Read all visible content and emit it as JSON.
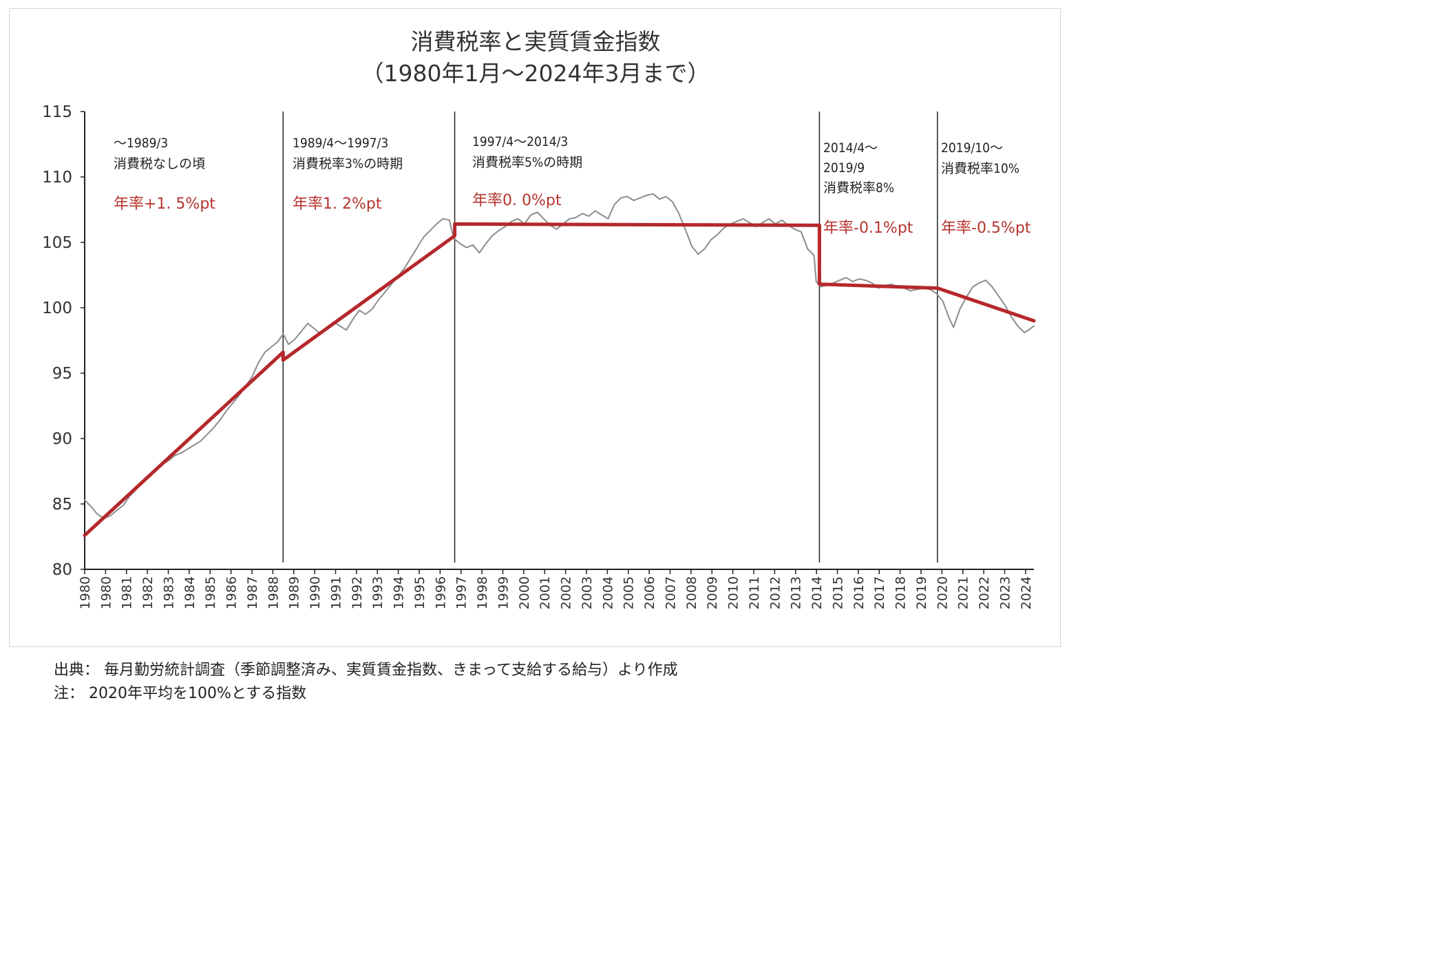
{
  "chart_data": {
    "type": "line",
    "title": "消費税率と実質賃金指数",
    "subtitle": "（1980年1月～2024年3月まで）",
    "xlabel": "",
    "ylabel": "",
    "ylim": [
      80,
      115
    ],
    "yticks": [
      "80",
      "85",
      "90",
      "95",
      "100",
      "105",
      "110",
      "115"
    ],
    "xlim": [
      1980.0,
      2024.25
    ],
    "xticks": [
      "1980",
      "1980",
      "1981",
      "1982",
      "1983",
      "1984",
      "1985",
      "1986",
      "1987",
      "1988",
      "1989",
      "1990",
      "1991",
      "1992",
      "1993",
      "1994",
      "1995",
      "1996",
      "1997",
      "1998",
      "1999",
      "2000",
      "2001",
      "2002",
      "2003",
      "2004",
      "2005",
      "2006",
      "2007",
      "2008",
      "2009",
      "2010",
      "2011",
      "2012",
      "2013",
      "2014",
      "2015",
      "2016",
      "2017",
      "2018",
      "2019",
      "2020",
      "2021",
      "2022",
      "2023",
      "2024"
    ],
    "grid": false,
    "series": [
      {
        "color": "#8c8c8c",
        "x": [
          1980.0,
          1980.3,
          1980.6,
          1980.9,
          1981.2,
          1981.5,
          1981.8,
          1982.1,
          1982.4,
          1982.7,
          1983.0,
          1983.3,
          1983.6,
          1983.9,
          1984.2,
          1984.5,
          1984.8,
          1985.1,
          1985.4,
          1985.7,
          1986.0,
          1986.3,
          1986.6,
          1986.9,
          1987.2,
          1987.5,
          1987.8,
          1988.1,
          1988.4,
          1988.7,
          1989.0,
          1989.25,
          1989.5,
          1989.8,
          1990.1,
          1990.4,
          1990.7,
          1991.0,
          1991.3,
          1991.6,
          1991.9,
          1992.2,
          1992.5,
          1992.8,
          1993.1,
          1993.4,
          1993.7,
          1994.0,
          1994.3,
          1994.6,
          1994.9,
          1995.2,
          1995.5,
          1995.8,
          1996.1,
          1996.4,
          1996.7,
          1997.0,
          1997.2,
          1997.5,
          1997.8,
          1998.1,
          1998.4,
          1998.7,
          1999.0,
          1999.3,
          1999.6,
          1999.9,
          2000.2,
          2000.5,
          2000.8,
          2001.1,
          2001.4,
          2001.7,
          2002.0,
          2002.3,
          2002.6,
          2002.9,
          2003.2,
          2003.5,
          2003.8,
          2004.1,
          2004.4,
          2004.7,
          2005.0,
          2005.3,
          2005.6,
          2005.9,
          2006.2,
          2006.5,
          2006.8,
          2007.1,
          2007.4,
          2007.7,
          2008.0,
          2008.3,
          2008.6,
          2008.9,
          2009.2,
          2009.5,
          2009.8,
          2010.1,
          2010.4,
          2010.7,
          2011.0,
          2011.3,
          2011.6,
          2011.9,
          2012.2,
          2012.5,
          2012.8,
          2013.1,
          2013.4,
          2013.7,
          2014.0,
          2014.1,
          2014.3,
          2014.6,
          2014.9,
          2015.2,
          2015.5,
          2015.8,
          2016.1,
          2016.4,
          2016.7,
          2017.0,
          2017.3,
          2017.6,
          2017.9,
          2018.2,
          2018.5,
          2018.8,
          2019.1,
          2019.4,
          2019.7,
          2020.0,
          2020.3,
          2020.5,
          2020.8,
          2021.1,
          2021.4,
          2021.7,
          2022.0,
          2022.3,
          2022.6,
          2022.9,
          2023.2,
          2023.5,
          2023.8,
          2024.0,
          2024.25
        ],
        "values": [
          85.3,
          84.8,
          84.2,
          83.9,
          84.1,
          84.5,
          84.9,
          85.6,
          86.1,
          86.6,
          87.2,
          87.6,
          88.0,
          88.3,
          88.7,
          88.9,
          89.2,
          89.5,
          89.8,
          90.3,
          90.8,
          91.4,
          92.1,
          92.7,
          93.3,
          94.0,
          94.7,
          95.8,
          96.6,
          97.0,
          97.4,
          98.0,
          97.2,
          97.6,
          98.2,
          98.8,
          98.4,
          98.0,
          98.5,
          98.9,
          98.6,
          98.3,
          99.1,
          99.8,
          99.5,
          99.9,
          100.6,
          101.2,
          101.8,
          102.4,
          103.0,
          103.8,
          104.6,
          105.4,
          105.9,
          106.4,
          106.8,
          106.7,
          105.3,
          104.9,
          104.6,
          104.8,
          104.2,
          104.9,
          105.5,
          105.9,
          106.2,
          106.6,
          106.8,
          106.4,
          107.1,
          107.3,
          106.8,
          106.3,
          106.0,
          106.4,
          106.8,
          106.9,
          107.2,
          107.0,
          107.4,
          107.1,
          106.8,
          107.9,
          108.4,
          108.5,
          108.2,
          108.4,
          108.6,
          108.7,
          108.3,
          108.5,
          108.1,
          107.2,
          106.0,
          104.7,
          104.1,
          104.5,
          105.2,
          105.6,
          106.1,
          106.4,
          106.6,
          106.8,
          106.5,
          106.2,
          106.5,
          106.8,
          106.4,
          106.7,
          106.3,
          106.0,
          105.8,
          104.5,
          104.0,
          102.0,
          101.6,
          101.7,
          101.9,
          102.1,
          102.3,
          102.0,
          102.2,
          102.1,
          101.9,
          101.5,
          101.7,
          101.8,
          101.6,
          101.5,
          101.3,
          101.4,
          101.5,
          101.4,
          101.1,
          100.5,
          99.2,
          98.5,
          99.9,
          100.8,
          101.6,
          101.9,
          102.1,
          101.6,
          100.9,
          100.2,
          99.3,
          98.6,
          98.1,
          98.3,
          98.6
        ]
      },
      {
        "color": "#b5282a",
        "x": [
          1980.0,
          1989.25,
          1989.25,
          1997.25,
          1997.25,
          2014.25,
          2014.25,
          2019.75,
          2019.75,
          2024.25
        ],
        "values": [
          82.6,
          96.6,
          96.0,
          105.5,
          106.4,
          106.3,
          101.8,
          101.5,
          101.5,
          99.0
        ]
      }
    ],
    "dividers": [
      1989.25,
      1997.25,
      2014.25,
      2019.75
    ],
    "annotations": [
      {
        "lines": [
          "～1989/3",
          "消費税なしの頃"
        ],
        "rate": "年率+1. 5%pt"
      },
      {
        "lines": [
          "1989/4～1997/3",
          "消費税率3%の時期"
        ],
        "rate": "年率1. 2%pt"
      },
      {
        "lines": [
          "1997/4～2014/3",
          "消費税率5%の時期"
        ],
        "rate": "年率0. 0%pt"
      },
      {
        "lines": [
          "2014/4～",
          "2019/9",
          "消費税率8%"
        ],
        "rate": "年率-0.1%pt"
      },
      {
        "lines": [
          "2019/10～",
          "消費税率10%"
        ],
        "rate": "年率-0.5%pt"
      }
    ]
  },
  "notes": {
    "source": "出典：  毎月勤労統計調査（季節調整済み、実質賃金指数、きまって支給する給与）より作成",
    "note": "注：  2020年平均を100%とする指数"
  }
}
